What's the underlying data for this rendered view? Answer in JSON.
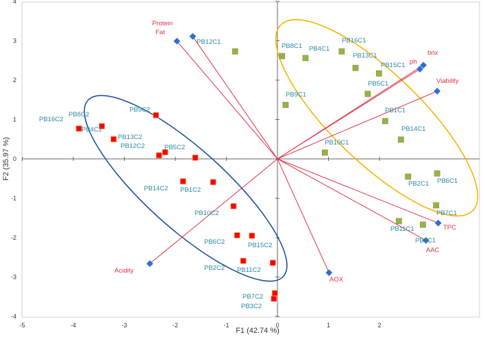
{
  "chart_data": {
    "type": "scatter",
    "subtype": "biplot",
    "xlabel": "F1 (42.74 %)",
    "ylabel": "F2 (35.97 %)",
    "xlim": [
      -5,
      4
    ],
    "ylim": [
      -4,
      4
    ],
    "xticks": [
      "-5",
      "-4",
      "-3",
      "-2",
      "-1",
      "0",
      "1",
      "2"
    ],
    "yticks": [
      "4",
      "3",
      "2",
      "1",
      "0",
      "-1",
      "-2",
      "-3",
      "-4"
    ],
    "colors": {
      "c1": "#7cc242",
      "c1_border": "#d9704a",
      "c2": "#ff0000",
      "variable": "#2f6fd0",
      "vector": "#e0304a",
      "ellipse_c1": "#f5b400",
      "ellipse_c2": "#1f4e9c",
      "obs_label": "#2a8aa0",
      "var_label": "#e0304a"
    },
    "observations_c1": [
      {
        "name": "PB8C1",
        "x": 0.09,
        "y": 2.61
      },
      {
        "name": "PB4C1",
        "x": 0.55,
        "y": 2.56
      },
      {
        "name": "PB16C1",
        "x": 1.26,
        "y": 2.73
      },
      {
        "name": "PB13C1",
        "x": 1.53,
        "y": 2.31
      },
      {
        "name": "PB15C1",
        "x": 1.99,
        "y": 2.17
      },
      {
        "name": "PB5C1",
        "x": 1.77,
        "y": 1.65
      },
      {
        "name": "PB9C1",
        "x": 0.16,
        "y": 1.37
      },
      {
        "name": "PB1C1",
        "x": 2.11,
        "y": 0.96
      },
      {
        "name": "PB14C1",
        "x": 2.42,
        "y": 0.49
      },
      {
        "name": "PB10C1",
        "x": 0.93,
        "y": 0.16
      },
      {
        "name": "PB12C1",
        "x": -0.83,
        "y": 2.73
      },
      {
        "name": "PB2C1",
        "x": 2.56,
        "y": -0.45
      },
      {
        "name": "PB6C1",
        "x": 3.13,
        "y": -0.37
      },
      {
        "name": "PB7C1",
        "x": 3.11,
        "y": -1.18
      },
      {
        "name": "PB11C1",
        "x": 2.38,
        "y": -1.58
      },
      {
        "name": "PB3C1",
        "x": 2.85,
        "y": -1.67
      }
    ],
    "observations_c2": [
      {
        "name": "PB4C2",
        "x": -3.89,
        "y": 0.77
      },
      {
        "name": "PB8C2",
        "x": -3.44,
        "y": 0.83
      },
      {
        "name": "PB16C2",
        "x": -3.89,
        "y": 0.77
      },
      {
        "name": "PB13C2",
        "x": -3.21,
        "y": 0.5
      },
      {
        "name": "PB12C2",
        "x": -3.21,
        "y": 0.5
      },
      {
        "name": "PB9C2",
        "x": -2.38,
        "y": 1.11
      },
      {
        "name": "PB5C2",
        "x": -2.2,
        "y": 0.17
      },
      {
        "name": "PB14C2",
        "x": -2.32,
        "y": 0.09
      },
      {
        "name": "PB1C2",
        "x": -1.85,
        "y": -0.57
      },
      {
        "name": "PB10C2",
        "x": -0.86,
        "y": -1.2
      },
      {
        "name": "PB6C2",
        "x": -0.79,
        "y": -1.94
      },
      {
        "name": "PB15C2",
        "x": -0.5,
        "y": -1.95
      },
      {
        "name": "PB11C2",
        "x": -0.67,
        "y": -2.59
      },
      {
        "name": "PB2C2",
        "x": -0.09,
        "y": -2.64
      },
      {
        "name": "PB7C2",
        "x": -0.05,
        "y": -3.41
      },
      {
        "name": "PB3C2",
        "x": -0.07,
        "y": -3.55
      },
      {
        "name": "",
        "x": -1.61,
        "y": 0.03
      },
      {
        "name": "",
        "x": -1.26,
        "y": -0.59
      }
    ],
    "variables": [
      {
        "name": "Protein",
        "x": -1.66,
        "y": 3.11
      },
      {
        "name": "Fat",
        "x": -1.97,
        "y": 2.99
      },
      {
        "name": "brix",
        "x": 2.86,
        "y": 2.38
      },
      {
        "name": "ph",
        "x": 2.79,
        "y": 2.28
      },
      {
        "name": "Viability",
        "x": 3.13,
        "y": 1.72
      },
      {
        "name": "TPC",
        "x": 3.15,
        "y": -1.63
      },
      {
        "name": "AAC",
        "x": 2.91,
        "y": -2.07
      },
      {
        "name": "AOX",
        "x": 1.01,
        "y": -2.89
      },
      {
        "name": "Acidity",
        "x": -2.5,
        "y": -2.66
      }
    ]
  }
}
